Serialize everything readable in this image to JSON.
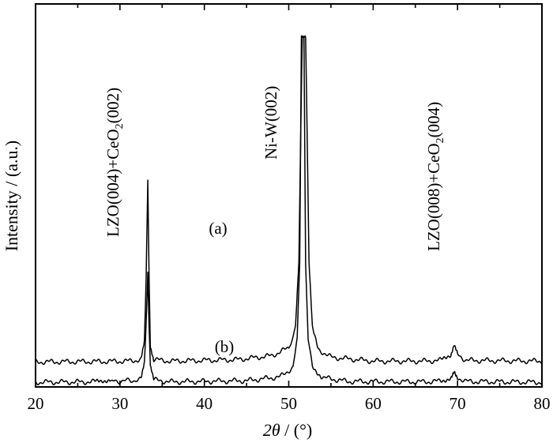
{
  "chart_data": {
    "type": "line",
    "xlabel_var": "2θ",
    "xlabel_unit": " / (°)",
    "ylabel": "Intensity / (a.u.)",
    "xlim": [
      20,
      80
    ],
    "x_ticks": [
      20,
      30,
      40,
      50,
      60,
      70,
      80
    ],
    "grid": false,
    "legend": "none",
    "y_ticks": "none (arbitrary units)",
    "series": [
      {
        "name": "(a)",
        "points": [
          [
            20,
            3.2
          ],
          [
            28,
            3.25
          ],
          [
            31,
            3.3
          ],
          [
            32.5,
            3.5
          ],
          [
            32.9,
            6
          ],
          [
            33.1,
            14
          ],
          [
            33.3,
            26.7
          ],
          [
            33.45,
            14
          ],
          [
            33.6,
            5
          ],
          [
            34,
            3.5
          ],
          [
            36,
            3.3
          ],
          [
            44,
            3.5
          ],
          [
            48,
            4.0
          ],
          [
            50,
            5.0
          ],
          [
            50.8,
            7.5
          ],
          [
            51.2,
            16
          ],
          [
            51.5,
            38
          ],
          [
            51.6,
            45
          ],
          [
            52.0,
            45
          ],
          [
            52.1,
            38
          ],
          [
            52.4,
            16
          ],
          [
            52.8,
            7.5
          ],
          [
            53.5,
            4.8
          ],
          [
            55,
            3.8
          ],
          [
            60,
            3.3
          ],
          [
            66,
            3.3
          ],
          [
            68,
            3.4
          ],
          [
            69.2,
            4.2
          ],
          [
            69.6,
            5.5
          ],
          [
            70.0,
            4.2
          ],
          [
            71,
            3.4
          ],
          [
            80,
            3.3
          ]
        ]
      },
      {
        "name": "(b)",
        "points": [
          [
            20,
            0.6
          ],
          [
            27,
            0.65
          ],
          [
            28.9,
            1.0
          ],
          [
            29.2,
            0.7
          ],
          [
            32.5,
            0.9
          ],
          [
            32.9,
            3
          ],
          [
            33.1,
            8
          ],
          [
            33.3,
            14.7
          ],
          [
            33.45,
            8
          ],
          [
            33.6,
            2.5
          ],
          [
            34,
            0.9
          ],
          [
            36,
            0.65
          ],
          [
            45,
            0.8
          ],
          [
            49,
            1.3
          ],
          [
            50.5,
            2.5
          ],
          [
            51.0,
            6
          ],
          [
            51.3,
            16
          ],
          [
            51.5,
            45
          ],
          [
            51.8,
            45
          ],
          [
            52.0,
            16
          ],
          [
            52.3,
            6
          ],
          [
            52.8,
            2.6
          ],
          [
            54,
            1.2
          ],
          [
            57,
            0.7
          ],
          [
            66,
            0.65
          ],
          [
            68,
            0.75
          ],
          [
            69.2,
            1.2
          ],
          [
            69.6,
            2.2
          ],
          [
            70.0,
            1.2
          ],
          [
            71,
            0.7
          ],
          [
            80,
            0.6
          ]
        ]
      }
    ],
    "annotations": [
      {
        "id": "peak1",
        "text_main": "LZO(004)+CeO",
        "sub": "2",
        "text_tail": "(002)",
        "x": 33.3
      },
      {
        "id": "peak2",
        "text_main": "Ni-W(002)",
        "sub": "",
        "text_tail": "",
        "x": 51.6
      },
      {
        "id": "peak3",
        "text_main": "LZO(008)+CeO",
        "sub": "2",
        "text_tail": "(004)",
        "x": 69.6
      }
    ]
  }
}
